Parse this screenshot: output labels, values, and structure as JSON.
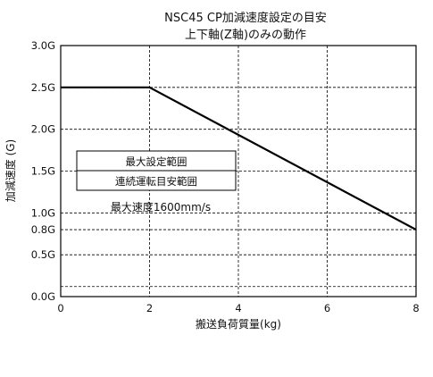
{
  "chart_data": {
    "type": "line",
    "title": "NSC45 CP加減速度設定の目安",
    "subtitle": "上下軸(Z軸)のみの動作",
    "xlabel": "搬送負荷質量(kg)",
    "ylabel": "加減速度 (G)",
    "xlim": [
      0,
      8
    ],
    "ylim": [
      0,
      3.0
    ],
    "x_ticks": [
      0,
      2,
      4,
      6,
      8
    ],
    "x_tick_labels": [
      "0",
      "2",
      "4",
      "6",
      "8"
    ],
    "y_ticks": [
      0.0,
      0.12,
      0.5,
      0.8,
      1.0,
      1.5,
      2.0,
      2.5,
      3.0
    ],
    "y_tick_labels": [
      "0.0G",
      "",
      "0.5G",
      "0.8G",
      "1.0G",
      "1.5G",
      "2.0G",
      "2.5G",
      "3.0G"
    ],
    "grid": true,
    "series": [
      {
        "name": "最大設定範囲",
        "style": "solid",
        "color": "#000000",
        "x": [
          0,
          2,
          8
        ],
        "y": [
          2.5,
          2.5,
          0.8
        ]
      },
      {
        "name": "連続運転目安範囲",
        "style": "dashed",
        "color": "#000000",
        "x": [
          0,
          2,
          8
        ],
        "y": [
          2.5,
          2.5,
          0.8
        ]
      }
    ],
    "legend": {
      "placement": "center-left",
      "entries": [
        "最大設定範囲",
        "連続運転目安範囲"
      ]
    },
    "annotation": "最大速度1600mm/s"
  }
}
